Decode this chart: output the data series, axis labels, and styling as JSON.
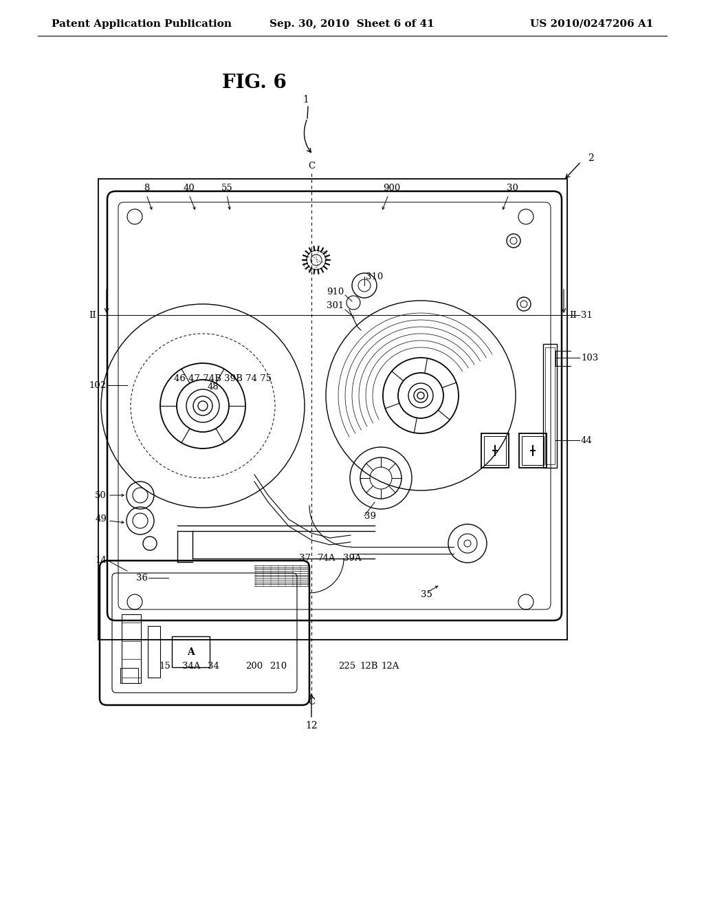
{
  "bg_color": "#ffffff",
  "line_color": "#000000",
  "header_left": "Patent Application Publication",
  "header_center": "Sep. 30, 2010  Sheet 6 of 41",
  "header_right": "US 2010/0247206 A1",
  "figure_title": "FIG. 6",
  "header_fontsize": 11,
  "title_fontsize": 20,
  "label_fontsize": 10,
  "small_fontsize": 9.5
}
